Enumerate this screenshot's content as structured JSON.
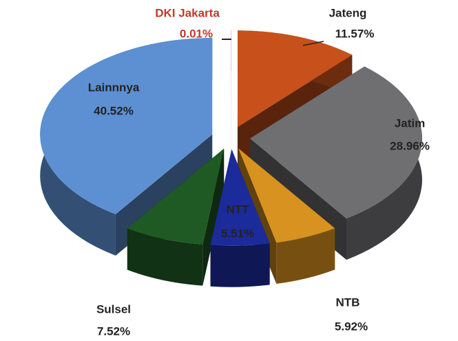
{
  "chart_data": {
    "type": "pie3d",
    "categories": [
      "DKI Jakarta",
      "Jateng",
      "Jatim",
      "NTB",
      "NTT",
      "Sulsel",
      "Lainnnya"
    ],
    "values": [
      0.01,
      11.57,
      28.96,
      5.92,
      5.51,
      7.52,
      40.52
    ],
    "value_labels": [
      "0.01%",
      "11.57%",
      "28.96%",
      "5.92%",
      "5.51%",
      "7.52%",
      "40.52%"
    ],
    "colors": [
      "#c0392b",
      "#c8501a",
      "#6f6f72",
      "#d8921f",
      "#1c2b9a",
      "#1f5a24",
      "#5d90d2"
    ],
    "label_colors": [
      "#c0392b",
      "#222222",
      "#222222",
      "#222222",
      "#222222",
      "#222222",
      "#222222"
    ]
  }
}
